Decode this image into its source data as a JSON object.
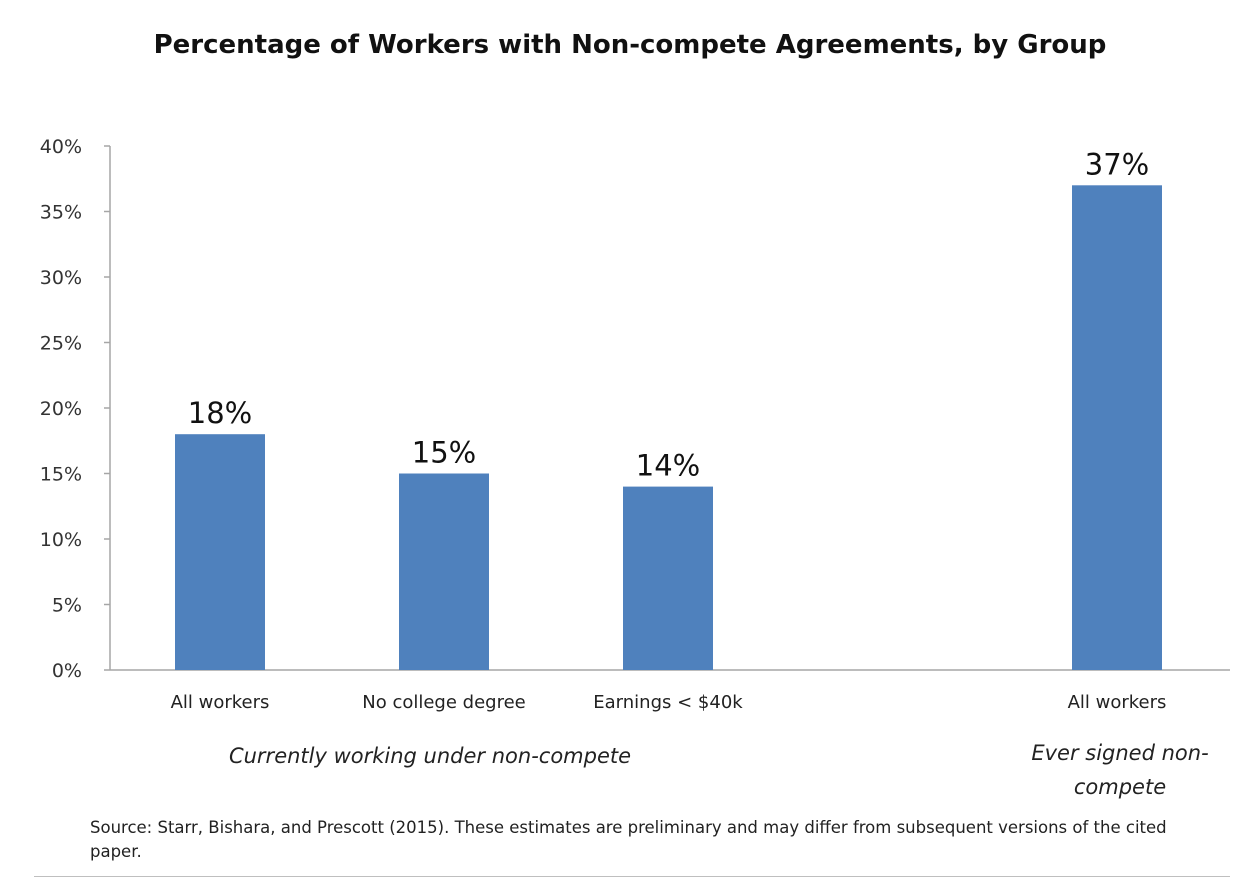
{
  "chart_data": {
    "type": "bar",
    "title": "Percentage of Workers with Non-compete Agreements, by Group",
    "xlabel": "",
    "ylabel": "",
    "categories": [
      "All workers",
      "No college degree",
      "Earnings < $40k",
      "All workers"
    ],
    "values": [
      18,
      15,
      14,
      37
    ],
    "data_labels": [
      "18%",
      "15%",
      "14%",
      "37%"
    ],
    "ylim": [
      0,
      40
    ],
    "yticks": [
      0,
      5,
      10,
      15,
      20,
      25,
      30,
      35,
      40
    ],
    "ytick_labels": [
      "0%",
      "5%",
      "10%",
      "15%",
      "20%",
      "25%",
      "30%",
      "35%",
      "40%"
    ],
    "groups": [
      {
        "label": "Currently working under non-compete",
        "categories": [
          0,
          1,
          2
        ]
      },
      {
        "label_lines": [
          "Ever signed non-",
          "compete"
        ],
        "categories": [
          3
        ]
      }
    ],
    "bar_color": "#4f81bd",
    "grid": false,
    "legend": "none"
  },
  "source_note": "Source: Starr, Bishara, and Prescott (2015). These estimates are preliminary and may differ from subsequent versions of the cited paper."
}
